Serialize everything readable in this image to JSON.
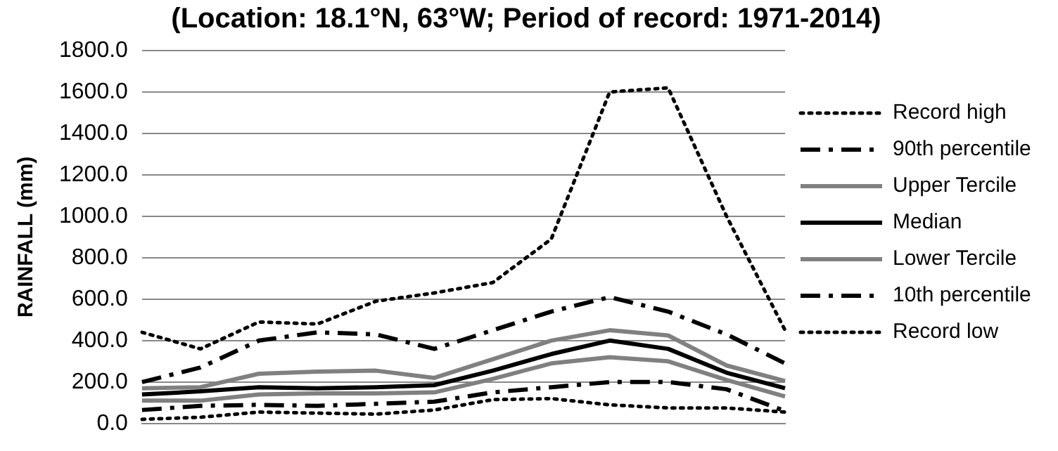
{
  "chart_data": {
    "type": "line",
    "title": "(Location: 18.1°N, 63°W; Period of record: 1971-2014)",
    "ylabel": "RAINFALL (mm)",
    "categories": [
      null,
      null,
      null,
      null,
      null,
      null,
      null,
      null,
      null,
      null,
      null,
      null
    ],
    "ylim": [
      0,
      1800
    ],
    "yticks": [
      {
        "value": 0,
        "label": "0.0"
      },
      {
        "value": 200,
        "label": "200.0"
      },
      {
        "value": 400,
        "label": "400.0"
      },
      {
        "value": 600,
        "label": "600.0"
      },
      {
        "value": 800,
        "label": "800.0"
      },
      {
        "value": 1000,
        "label": "1000.0"
      },
      {
        "value": 1200,
        "label": "1200.0"
      },
      {
        "value": 1400,
        "label": "1400.0"
      },
      {
        "value": 1600,
        "label": "1600.0"
      },
      {
        "value": 1800,
        "label": "1800.0"
      }
    ],
    "grid": "y",
    "legend": "right",
    "marker": "none",
    "tick_labels": "y",
    "series": [
      {
        "name": "Record high",
        "color": "#000000",
        "line_style": "dotted",
        "values": [
          440,
          360,
          490,
          480,
          590,
          630,
          680,
          890,
          1600,
          1620,
          1000,
          450
        ]
      },
      {
        "name": "90th percentile",
        "color": "#000000",
        "line_style": "dashed",
        "values": [
          200,
          270,
          400,
          440,
          430,
          360,
          450,
          540,
          610,
          540,
          430,
          290
        ]
      },
      {
        "name": "Upper Tercile",
        "color": "#808080",
        "line_style": "solid",
        "values": [
          170,
          175,
          240,
          250,
          255,
          220,
          310,
          400,
          450,
          425,
          280,
          205
        ]
      },
      {
        "name": "Median",
        "color": "#000000",
        "line_style": "solid",
        "values": [
          140,
          155,
          175,
          170,
          175,
          185,
          255,
          335,
          400,
          360,
          245,
          170
        ]
      },
      {
        "name": "Lower Tercile",
        "color": "#808080",
        "line_style": "solid",
        "values": [
          110,
          110,
          140,
          145,
          145,
          150,
          215,
          290,
          320,
          300,
          210,
          130
        ]
      },
      {
        "name": "10th percentile",
        "color": "#000000",
        "line_style": "dashed",
        "values": [
          65,
          85,
          90,
          85,
          95,
          105,
          150,
          175,
          200,
          200,
          165,
          60
        ]
      },
      {
        "name": "Record low",
        "color": "#000000",
        "line_style": "dotted",
        "values": [
          20,
          30,
          55,
          50,
          45,
          65,
          115,
          120,
          90,
          75,
          75,
          55
        ]
      }
    ]
  }
}
